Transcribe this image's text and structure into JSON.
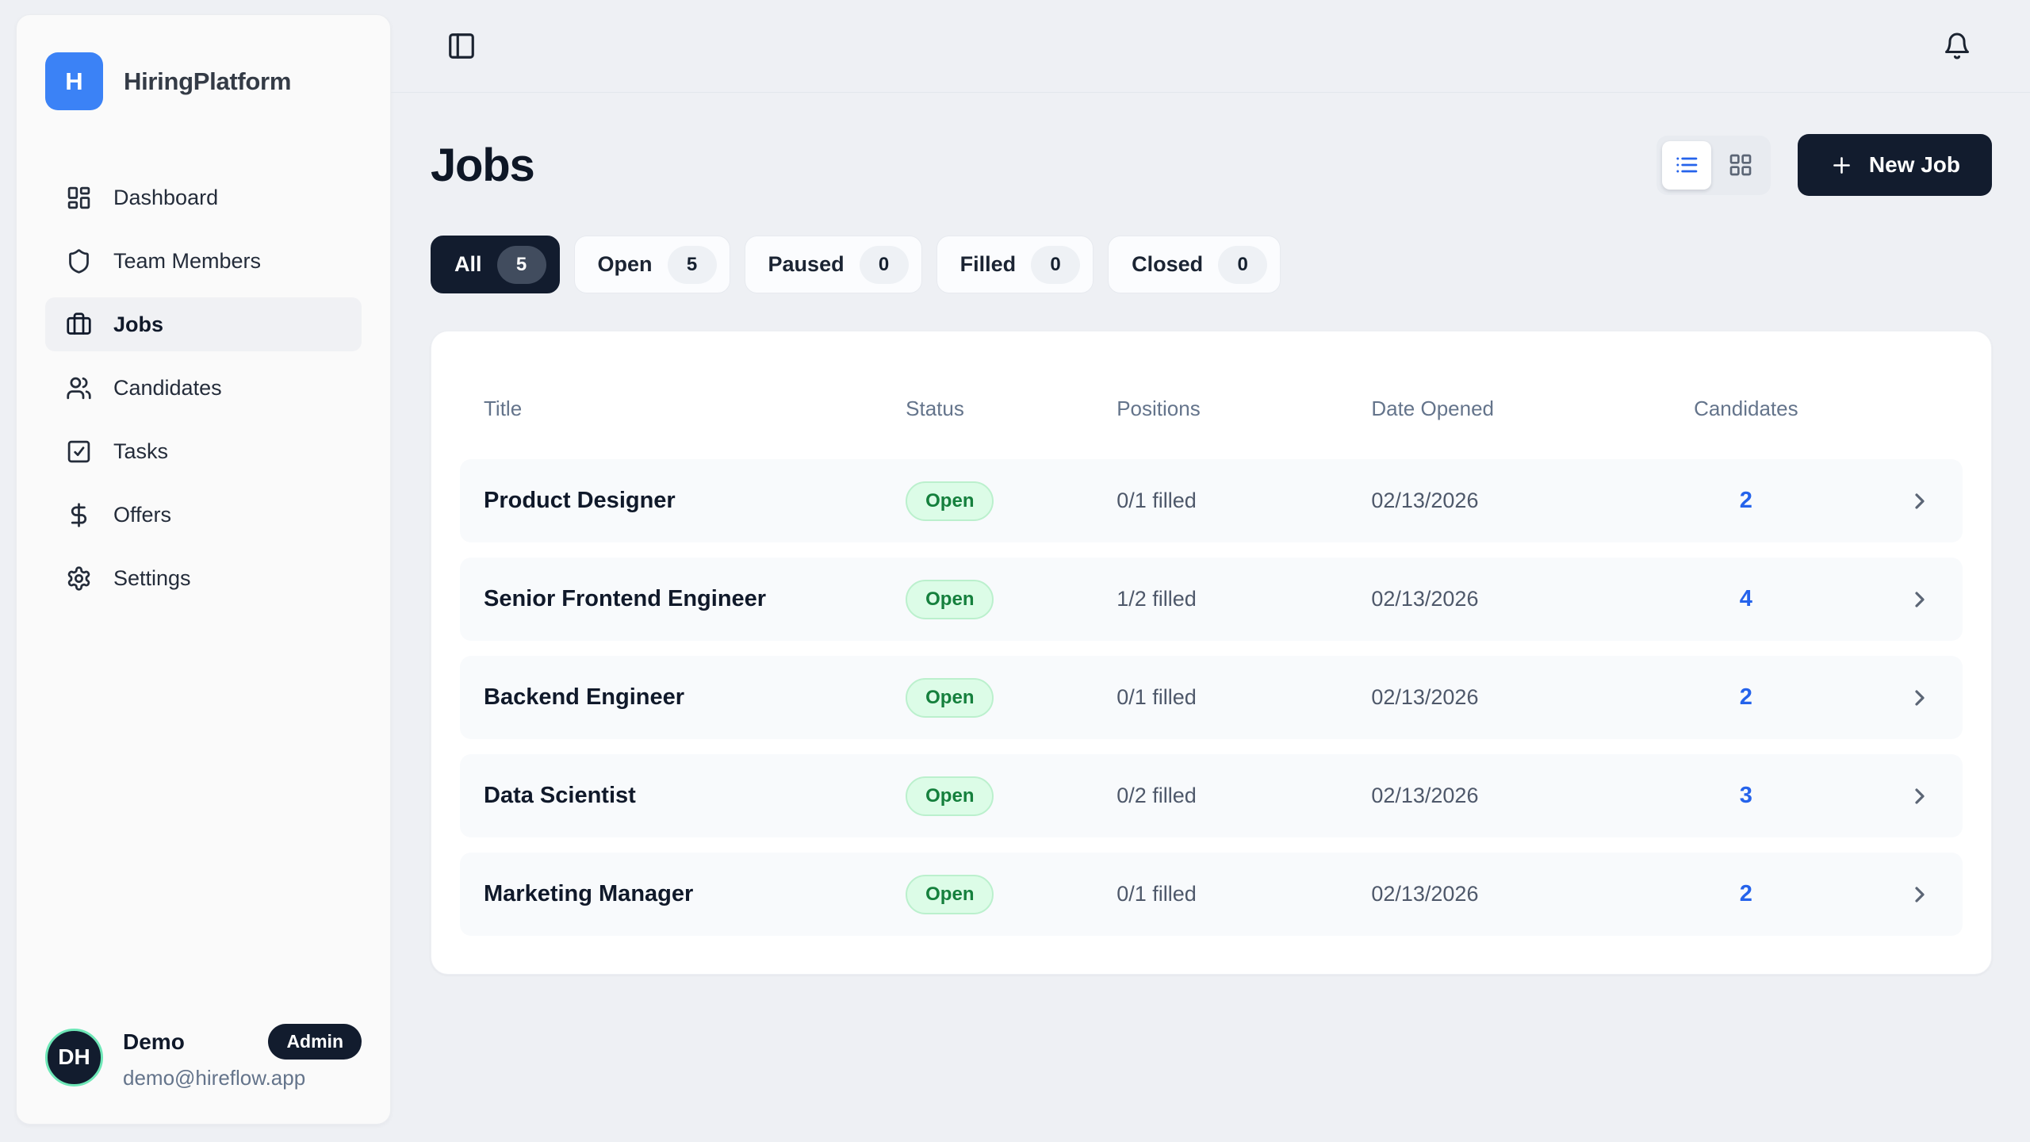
{
  "brand": {
    "name": "HiringPlatform",
    "logo_letter": "H"
  },
  "sidebar": {
    "nav": [
      {
        "label": "Dashboard",
        "icon": "dashboard-icon",
        "active": false
      },
      {
        "label": "Team Members",
        "icon": "shield-icon",
        "active": false
      },
      {
        "label": "Jobs",
        "icon": "briefcase-icon",
        "active": true
      },
      {
        "label": "Candidates",
        "icon": "users-icon",
        "active": false
      },
      {
        "label": "Tasks",
        "icon": "task-check-icon",
        "active": false
      },
      {
        "label": "Offers",
        "icon": "dollar-icon",
        "active": false
      },
      {
        "label": "Settings",
        "icon": "gear-icon",
        "active": false
      }
    ],
    "user": {
      "initials": "DH",
      "name": "Demo",
      "role_badge": "Admin",
      "email": "demo@hireflow.app"
    }
  },
  "topbar": {
    "panel_icon": "panel-toggle-icon",
    "bell_icon": "bell-icon"
  },
  "page": {
    "title": "Jobs",
    "new_job": {
      "label": "New Job",
      "icon": "plus-icon"
    },
    "view_modes": [
      {
        "icon": "list-view-icon",
        "active": true
      },
      {
        "icon": "grid-view-icon",
        "active": false
      }
    ],
    "filters": [
      {
        "label": "All",
        "count": 5,
        "active": true
      },
      {
        "label": "Open",
        "count": 5,
        "active": false
      },
      {
        "label": "Paused",
        "count": 0,
        "active": false
      },
      {
        "label": "Filled",
        "count": 0,
        "active": false
      },
      {
        "label": "Closed",
        "count": 0,
        "active": false
      }
    ],
    "table": {
      "columns": [
        "Title",
        "Status",
        "Positions",
        "Date Opened",
        "Candidates"
      ],
      "row_chevron_icon": "chevron-right-icon",
      "rows": [
        {
          "title": "Product Designer",
          "status": "Open",
          "positions": "0/1 filled",
          "date_opened": "02/13/2026",
          "candidates": 2
        },
        {
          "title": "Senior Frontend Engineer",
          "status": "Open",
          "positions": "1/2 filled",
          "date_opened": "02/13/2026",
          "candidates": 4
        },
        {
          "title": "Backend Engineer",
          "status": "Open",
          "positions": "0/1 filled",
          "date_opened": "02/13/2026",
          "candidates": 2
        },
        {
          "title": "Data Scientist",
          "status": "Open",
          "positions": "0/2 filled",
          "date_opened": "02/13/2026",
          "candidates": 3
        },
        {
          "title": "Marketing Manager",
          "status": "Open",
          "positions": "0/1 filled",
          "date_opened": "02/13/2026",
          "candidates": 2
        }
      ]
    }
  },
  "colors": {
    "background": "#eef0f4",
    "sidebar_background": "#fafafa",
    "brand_blue": "#3b82f6",
    "dark_navy": "#121c2e",
    "link_blue": "#2563eb",
    "open_badge_background": "#dcfce7",
    "open_badge_text": "#15803d",
    "row_background": "#f8fafc",
    "muted_text": "#64748b",
    "avatar_ring": "#6ee7b7"
  }
}
